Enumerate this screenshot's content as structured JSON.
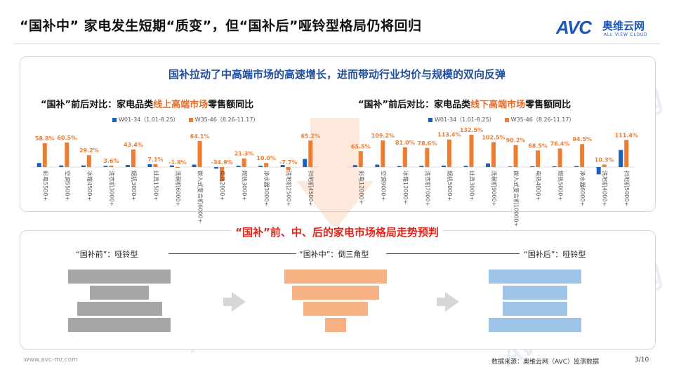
{
  "header": {
    "title": "“国补中” 家电发生短期“质变”，但“国补后”哑铃型格局仍将回归",
    "logo_avc": "AVC",
    "logo_cn": "奥维云网",
    "logo_en": "ALL VIEW CLOUD"
  },
  "watermark_text": "AVC 奥维云网",
  "top_panel": {
    "subtitle": "国补拉动了中高端市场的高速增长，进而带动行业均价与规模的双向反弹"
  },
  "bottom_panel": {
    "subtitle": "“国补”前、中、后的家电市场格局走势预判",
    "stages": [
      {
        "label": "“国补前”：哑铃型"
      },
      {
        "label": "“国补中”：倒三角型"
      },
      {
        "label": "“国补后”：哑铃型"
      }
    ],
    "shape_stage1": [
      0.66,
      0.38,
      0.55,
      0.66
    ],
    "shape_stage2": [
      0.66,
      0.56,
      0.42,
      0.14
    ],
    "shape_stage3": [
      0.6,
      0.42,
      0.42,
      0.6
    ]
  },
  "colors": {
    "blue_series": "#1f5fbf",
    "orange_series": "#f07c2f",
    "stage1": "#a6a6a6",
    "stage2": "#f6b183",
    "stage3": "#9dc3e6",
    "highlight": "#e36c2a"
  },
  "chart_data": [
    {
      "type": "bar",
      "title_pre": "“国补”前后对比：家电品类",
      "title_highlight": "线上高端市场",
      "title_post": "零售额同比",
      "categories": [
        "彩电5500+",
        "空调5500+",
        "冰箱4500+",
        "洗衣机3000+",
        "烟机3000+",
        "灶具1500+",
        "洗碗机6000+",
        "嵌入式复合机6000+",
        "电热2000+",
        "燃热3000+",
        "净水器3000+",
        "洗地机2500+",
        "扫地机4500+"
      ],
      "series": [
        {
          "name": "W01-34（1.01-8.25）",
          "values": [
            10,
            4,
            4,
            3,
            5,
            7,
            4,
            6,
            -4,
            3,
            3,
            5,
            20
          ]
        },
        {
          "name": "W35-46（8.26-11.17）",
          "values": [
            58.8,
            60.5,
            29.2,
            3.6,
            43.4,
            7.1,
            -1.8,
            64.1,
            -34.9,
            21.3,
            10.0,
            -7.7,
            65.2
          ]
        }
      ],
      "data_labels": [
        "58.8%",
        "60.5%",
        "29.2%",
        "3.6%",
        "43.4%",
        "7.1%",
        "-1.8%",
        "64.1%",
        "-34.9%",
        "21.3%",
        "10.0%",
        "-7.7%",
        "65.2%"
      ],
      "ylim": [
        -40,
        90
      ]
    },
    {
      "type": "bar",
      "title_pre": "“国补”前后对比：家电品类",
      "title_highlight": "线下高端市场",
      "title_post": "零售额同比",
      "categories": [
        "彩电12000+",
        "空调9000+",
        "冰箱12000+",
        "洗衣机7000+",
        "烟机5000+",
        "灶具3000+",
        "洗碗机9000+",
        "嵌入式复合机10000+",
        "电热4000+",
        "燃热5000+",
        "净水器6000+",
        "洗地机4000+",
        "扫地机5000+"
      ],
      "series": [
        {
          "name": "W01-34（1.01-8.25）",
          "values": [
            8,
            10,
            4,
            5,
            6,
            5,
            15,
            2,
            3,
            3,
            4,
            -30,
            70
          ]
        },
        {
          "name": "W35-46（8.26-11.17）",
          "values": [
            65.5,
            109.2,
            81.0,
            78.6,
            113.4,
            132.5,
            102.5,
            90.2,
            68.5,
            76.4,
            94.5,
            10.3,
            111.4
          ]
        }
      ],
      "data_labels": [
        "65.5%",
        "109.2%",
        "81.0%",
        "78.6%",
        "113.4%",
        "132.5%",
        "102.5%",
        "90.2%",
        "68.5%",
        "76.4%",
        "94.5%",
        "10.3%",
        "111.4%"
      ],
      "ylim": [
        -40,
        150
      ]
    }
  ],
  "footer": {
    "website": "www.avc-mr.com",
    "source": "数据来源：奥维云网（AVC）监测数据",
    "page": "3/10"
  }
}
